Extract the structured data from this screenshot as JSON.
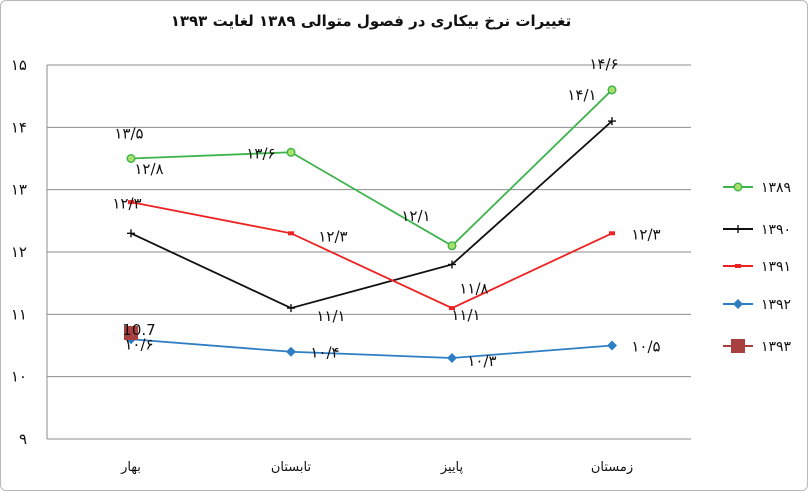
{
  "chart_data": {
    "type": "line",
    "title": "تغییرات نرخ بیکاری در فصول متوالی ۱۳۸۹ لغایت ۱۳۹۳",
    "categories": [
      "بهار",
      "تابستان",
      "پاییز",
      "زمستان"
    ],
    "yticks": [
      "۹",
      "۱۰",
      "۱۱",
      "۱۲",
      "۱۳",
      "۱۴",
      "۱۵"
    ],
    "ylim": [
      9,
      15
    ],
    "grid": true,
    "legend_position": "right",
    "series": [
      {
        "name": "۱۳۸۹",
        "color": "#3cb44b",
        "marker": "circle",
        "values": [
          13.5,
          13.6,
          12.1,
          14.6
        ],
        "labels": [
          "۱۳/۵",
          "۱۳/۶",
          "۱۲/۱",
          "۱۴/۶"
        ]
      },
      {
        "name": "۱۳۹۰",
        "color": "#111111",
        "marker": "plus",
        "values": [
          12.3,
          11.1,
          11.8,
          14.1
        ],
        "labels": [
          "۱۲/۳",
          "۱۱/۱",
          "۱۱/۸",
          "۱۴/۱"
        ]
      },
      {
        "name": "۱۳۹۱",
        "color": "#ee2222",
        "marker": "dash",
        "values": [
          12.8,
          12.3,
          11.1,
          12.3
        ],
        "labels": [
          "۱۲/۸",
          "۱۲/۳",
          "۱۱/۱",
          "۱۲/۳"
        ]
      },
      {
        "name": "۱۳۹۲",
        "color": "#2e7ec4",
        "marker": "diamond",
        "values": [
          10.6,
          10.4,
          10.3,
          10.5
        ],
        "labels": [
          "۱۰/۶",
          "۱۰/۴",
          "۱۰/۳",
          "۱۰/۵"
        ]
      },
      {
        "name": "۱۳۹۳",
        "color": "#a84040",
        "marker": "square",
        "values": [
          10.7,
          null,
          null,
          null
        ],
        "labels": [
          "10.7",
          "",
          "",
          ""
        ]
      }
    ]
  }
}
